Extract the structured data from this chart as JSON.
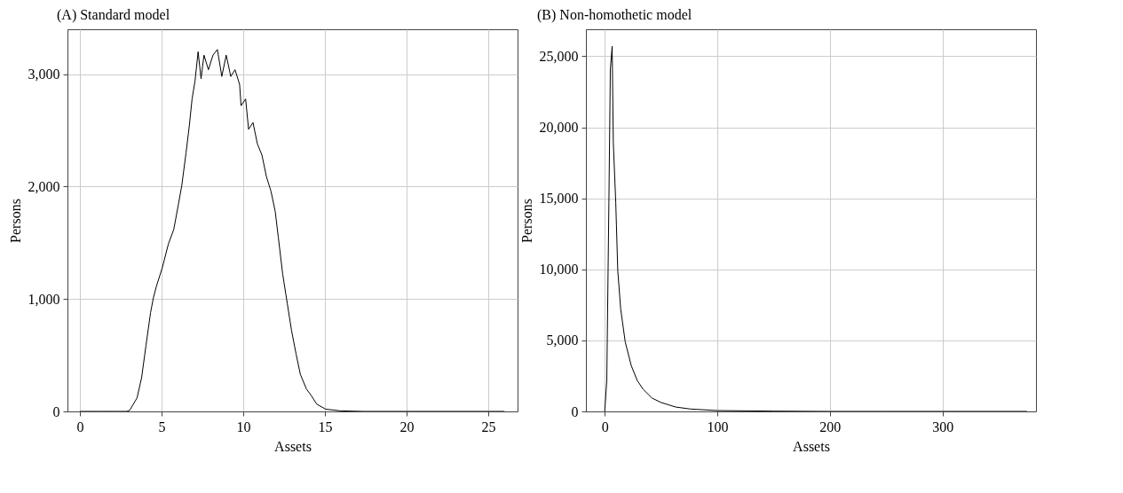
{
  "chart_data": [
    {
      "type": "line",
      "title": "(A) Standard model",
      "xlabel": "Assets",
      "ylabel": "Persons",
      "color": "#000000",
      "grid": true,
      "x": [
        0,
        1,
        2,
        2.87,
        3.05,
        3.5,
        3.78,
        4.05,
        4.33,
        4.5,
        4.7,
        5.05,
        5.42,
        5.75,
        6.05,
        6.24,
        6.5,
        6.7,
        6.87,
        7.05,
        7.24,
        7.42,
        7.6,
        7.87,
        8.15,
        8.42,
        8.69,
        8.96,
        9.24,
        9.5,
        9.78,
        9.87,
        10.15,
        10.33,
        10.6,
        10.87,
        11.15,
        11.42,
        11.7,
        11.96,
        12.15,
        12.42,
        12.7,
        12.96,
        13.24,
        13.5,
        13.87,
        14.15,
        14.5,
        15.05,
        15.96,
        17.4,
        20,
        23,
        26
      ],
      "values": [
        0,
        0,
        0,
        0,
        10,
        120,
        300,
        590,
        880,
        1010,
        1120,
        1280,
        1490,
        1620,
        1855,
        2010,
        2300,
        2540,
        2780,
        2940,
        3200,
        2960,
        3170,
        3040,
        3170,
        3220,
        2980,
        3170,
        2980,
        3040,
        2910,
        2720,
        2780,
        2510,
        2570,
        2380,
        2280,
        2090,
        1960,
        1780,
        1550,
        1220,
        960,
        720,
        510,
        330,
        200,
        145,
        65,
        20,
        5,
        0,
        0,
        0,
        0
      ],
      "xlim": [
        -0.76,
        26.8
      ],
      "ylim": [
        0,
        3400
      ],
      "xticks": [
        0,
        5,
        10,
        15,
        20,
        25
      ],
      "yticks": [
        0,
        {
          "value": 1000,
          "label": "1,000"
        },
        {
          "value": 2000,
          "label": "2,000"
        },
        {
          "value": 3000,
          "label": "3,000"
        }
      ]
    },
    {
      "type": "line",
      "title": "(B) Non-homothetic model",
      "xlabel": "Assets",
      "ylabel": "Persons",
      "color": "#000000",
      "grid": true,
      "x": [
        0,
        1.85,
        3.7,
        5.0,
        6.6,
        7.65,
        9.8,
        11.6,
        14.2,
        18.2,
        23.5,
        28.8,
        34,
        42,
        50,
        63,
        76,
        100,
        150,
        200,
        250,
        375
      ],
      "values": [
        0,
        2190,
        14700,
        24100,
        25700,
        18900,
        14700,
        9900,
        7200,
        4900,
        3240,
        2190,
        1570,
        940,
        630,
        310,
        170,
        60,
        20,
        0,
        0,
        0
      ],
      "xlim": [
        -16.7,
        383
      ],
      "ylim": [
        0,
        26900
      ],
      "xticks": [
        0,
        100,
        200,
        300
      ],
      "yticks": [
        0,
        {
          "value": 5000,
          "label": "5,000"
        },
        {
          "value": 10000,
          "label": "10,000"
        },
        {
          "value": 15000,
          "label": "15,000"
        },
        {
          "value": 20000,
          "label": "20,000"
        },
        {
          "value": 25000,
          "label": "25,000"
        }
      ]
    }
  ]
}
